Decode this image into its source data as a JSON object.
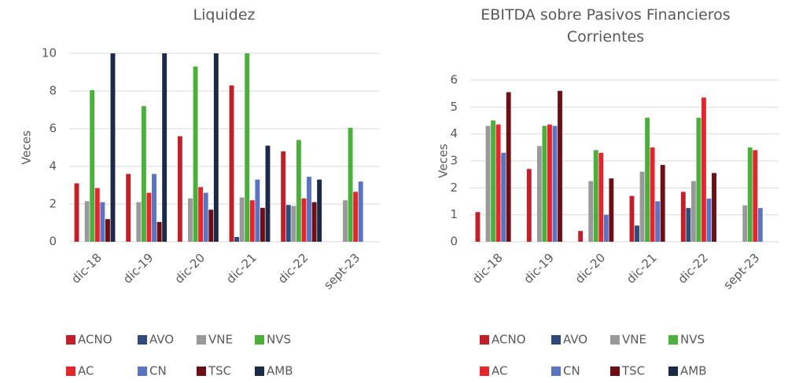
{
  "chart_data": [
    {
      "type": "bar",
      "title": "Liquidez",
      "y_label": "Veces",
      "categories": [
        "dic-18",
        "dic-19",
        "dic-20",
        "dic-21",
        "dic-22",
        "sept-23"
      ],
      "series": [
        {
          "name": "ACNO",
          "color": "#c0202a",
          "values": [
            3.1,
            3.6,
            5.6,
            8.3,
            4.8,
            null
          ]
        },
        {
          "name": "AVO",
          "color": "#2f4b7c",
          "values": [
            null,
            null,
            null,
            0.25,
            1.95,
            null
          ]
        },
        {
          "name": "VNE",
          "color": "#999999",
          "values": [
            2.15,
            2.1,
            2.3,
            2.35,
            1.9,
            2.2
          ]
        },
        {
          "name": "NVS",
          "color": "#4caf3c",
          "values": [
            8.05,
            7.2,
            9.3,
            10,
            5.4,
            6.05
          ]
        },
        {
          "name": "AC",
          "color": "#e3262e",
          "values": [
            2.85,
            2.6,
            2.9,
            2.2,
            2.3,
            2.65
          ]
        },
        {
          "name": "CN",
          "color": "#5b74c2",
          "values": [
            2.1,
            3.6,
            2.6,
            3.3,
            3.45,
            3.2
          ]
        },
        {
          "name": "TSC",
          "color": "#6e0f16",
          "values": [
            1.2,
            1.05,
            1.7,
            1.8,
            2.1,
            null
          ]
        },
        {
          "name": "AMB",
          "color": "#1c2a48",
          "values": [
            10,
            10,
            10,
            5.1,
            3.3,
            null
          ]
        }
      ],
      "ylim": [
        0,
        10
      ],
      "yticks": [
        0,
        2,
        4,
        6,
        8,
        10
      ],
      "grid": true,
      "legend": "bottom"
    },
    {
      "type": "bar",
      "title": "EBITDA sobre Pasivos Financieros Corrientes",
      "y_label": "Veces",
      "categories": [
        "dic-18",
        "dic-19",
        "dic-20",
        "dic-21",
        "dic-22",
        "sept-23"
      ],
      "series": [
        {
          "name": "ACNO",
          "color": "#c0202a",
          "values": [
            1.1,
            2.7,
            0.4,
            1.7,
            1.85,
            null
          ]
        },
        {
          "name": "AVO",
          "color": "#2f4b7c",
          "values": [
            null,
            null,
            null,
            0.6,
            1.25,
            null
          ]
        },
        {
          "name": "VNE",
          "color": "#999999",
          "values": [
            4.3,
            3.55,
            2.25,
            2.6,
            2.25,
            1.35
          ]
        },
        {
          "name": "NVS",
          "color": "#4caf3c",
          "values": [
            4.5,
            4.3,
            3.4,
            4.6,
            4.6,
            3.5
          ]
        },
        {
          "name": "AC",
          "color": "#e3262e",
          "values": [
            4.35,
            4.35,
            3.3,
            3.5,
            5.35,
            3.4
          ]
        },
        {
          "name": "CN",
          "color": "#5b74c2",
          "values": [
            3.3,
            4.3,
            1.0,
            1.5,
            1.6,
            1.25
          ]
        },
        {
          "name": "TSC",
          "color": "#6e0f16",
          "values": [
            5.55,
            5.6,
            2.35,
            2.85,
            2.55,
            null
          ]
        },
        {
          "name": "AMB",
          "color": "#1c2a48",
          "values": [
            null,
            null,
            null,
            null,
            null,
            null
          ]
        }
      ],
      "ylim": [
        0,
        6
      ],
      "yticks": [
        0,
        1,
        2,
        3,
        4,
        5,
        6
      ],
      "grid": true,
      "legend": "bottom"
    }
  ]
}
